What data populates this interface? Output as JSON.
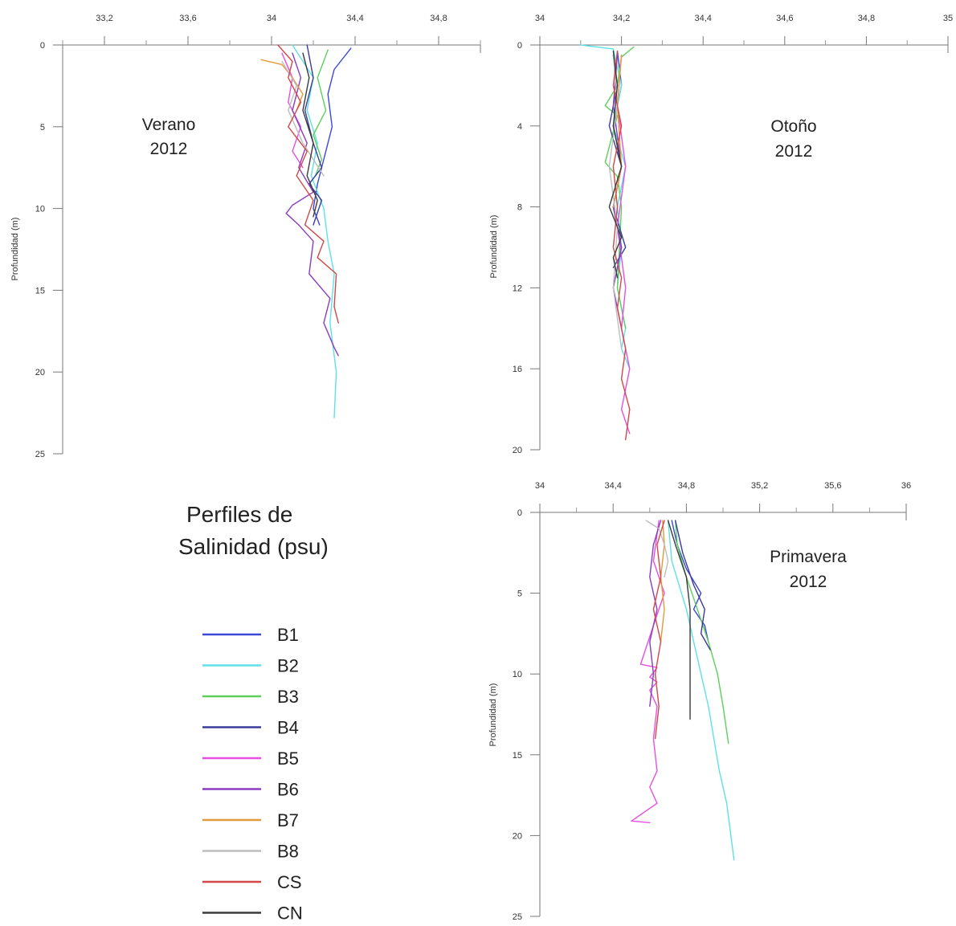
{
  "figure": {
    "title_lines": [
      "Perfiles de",
      "Salinidad (psu)"
    ]
  },
  "legend": [
    {
      "name": "B1",
      "color": "#3a48d8"
    },
    {
      "name": "B2",
      "color": "#5ee0e8"
    },
    {
      "name": "B3",
      "color": "#5ccf5c"
    },
    {
      "name": "B4",
      "color": "#3b3b9a"
    },
    {
      "name": "B5",
      "color": "#e64fe0"
    },
    {
      "name": "B6",
      "color": "#8a3bbf"
    },
    {
      "name": "B7",
      "color": "#e39a3a"
    },
    {
      "name": "B8",
      "color": "#bdbdbd"
    },
    {
      "name": "CS",
      "color": "#d24848"
    },
    {
      "name": "CN",
      "color": "#3b3b3b"
    }
  ],
  "chart_data": [
    {
      "type": "line",
      "label_lines": [
        "Verano",
        "2012"
      ],
      "ylabel": "Profundidad (m)",
      "xlim": [
        33.0,
        35.0
      ],
      "ylim": [
        0,
        25
      ],
      "y_inverted": true,
      "x_ticks": [
        33.2,
        33.6,
        34,
        34.4,
        34.8
      ],
      "x_tick_labels": [
        "33,2",
        "33,6",
        "34",
        "34,4",
        "34,8"
      ],
      "y_ticks": [
        0,
        5,
        10,
        15,
        20,
        25
      ],
      "y_tick_labels": [
        "0",
        "5",
        "10",
        "15",
        "20",
        "25"
      ],
      "series": [
        {
          "name": "B1",
          "x": [
            34.38,
            34.3,
            34.27,
            34.29,
            34.25,
            34.22,
            34.2,
            34.23
          ],
          "y": [
            0.2,
            1.5,
            3,
            5,
            7,
            8.5,
            10,
            11
          ]
        },
        {
          "name": "B2",
          "x": [
            34.1,
            34.2,
            34.17,
            34.22,
            34.19,
            34.25,
            34.27,
            34.3,
            34.28,
            34.31,
            34.3
          ],
          "y": [
            0,
            2,
            4,
            6,
            8,
            10,
            12,
            14,
            17,
            20,
            22.8
          ]
        },
        {
          "name": "B3",
          "x": [
            34.27,
            34.22,
            34.26,
            34.2,
            34.24,
            34.21
          ],
          "y": [
            0.3,
            2,
            4,
            5.5,
            7,
            8
          ]
        },
        {
          "name": "B4",
          "x": [
            34.17,
            34.2,
            34.16,
            34.2,
            34.24,
            34.18,
            34.24,
            34.2
          ],
          "y": [
            0,
            2,
            4,
            6,
            7.5,
            8.5,
            9.5,
            11
          ]
        },
        {
          "name": "B5",
          "x": [
            34.05,
            34.1,
            34.08,
            34.14,
            34.1,
            34.15
          ],
          "y": [
            0.5,
            2,
            3.5,
            5,
            6.5,
            7.5
          ]
        },
        {
          "name": "B6",
          "x": [
            34.1,
            34.14,
            34.1,
            34.17,
            34.13,
            34.2,
            34.1,
            34.07,
            34.13,
            34.2,
            34.18,
            34.28,
            34.25,
            34.3,
            34.32
          ],
          "y": [
            0.5,
            2,
            4,
            6,
            7.5,
            9,
            9.8,
            10.3,
            11,
            12,
            14,
            15.5,
            17,
            18.5,
            19
          ]
        },
        {
          "name": "B7",
          "x": [
            33.95,
            34.05,
            34.1,
            34.15,
            34.12
          ],
          "y": [
            0.9,
            1.2,
            2,
            3,
            4
          ]
        },
        {
          "name": "B8",
          "x": [
            34.05,
            34.12,
            34.08,
            34.15,
            34.2,
            34.25
          ],
          "y": [
            1,
            2.5,
            4,
            6,
            7,
            8
          ]
        },
        {
          "name": "CS",
          "x": [
            34.03,
            34.1,
            34.08,
            34.14,
            34.08,
            34.17,
            34.12,
            34.2,
            34.16,
            34.25,
            34.22,
            34.31,
            34.3,
            34.32
          ],
          "y": [
            0,
            1,
            2,
            3.5,
            5,
            6.5,
            8,
            9.5,
            11,
            12,
            13,
            14,
            16,
            17
          ]
        },
        {
          "name": "CN",
          "x": [
            34.15,
            34.18,
            34.15,
            34.2,
            34.17,
            34.22,
            34.2
          ],
          "y": [
            0.5,
            2,
            4,
            6,
            8,
            9.5,
            10.5
          ]
        }
      ]
    },
    {
      "type": "line",
      "label_lines": [
        "Otoño",
        "2012"
      ],
      "ylabel": "Profundidad (m)",
      "xlim": [
        34.0,
        35.0
      ],
      "ylim": [
        0,
        20
      ],
      "y_inverted": true,
      "x_ticks": [
        34,
        34.2,
        34.4,
        34.6,
        34.8,
        35
      ],
      "x_tick_labels": [
        "34",
        "34,2",
        "34,4",
        "34,6",
        "34,8",
        "35"
      ],
      "y_ticks": [
        0,
        4,
        8,
        12,
        16,
        20
      ],
      "y_tick_labels": [
        "0",
        "4",
        "8",
        "12",
        "16",
        "20"
      ],
      "series": [
        {
          "name": "B1",
          "x": [
            34.19,
            34.2,
            34.18,
            34.2,
            34.18,
            34.2,
            34.19
          ],
          "y": [
            0.3,
            2,
            4,
            6,
            8,
            10,
            11
          ]
        },
        {
          "name": "B2",
          "x": [
            34.1,
            34.18,
            34.2,
            34.18,
            34.21,
            34.19,
            34.2,
            34.19,
            34.21,
            34.2,
            34.22
          ],
          "y": [
            0,
            0.2,
            2,
            4,
            6,
            8,
            10,
            12,
            14,
            15,
            16
          ]
        },
        {
          "name": "B3",
          "x": [
            34.23,
            34.2,
            34.19,
            34.16,
            34.19,
            34.16,
            34.19,
            34.2,
            34.19,
            34.21
          ],
          "y": [
            0.1,
            0.6,
            2,
            3,
            3.5,
            5.8,
            6.5,
            8,
            12,
            14
          ]
        },
        {
          "name": "B4",
          "x": [
            34.18,
            34.19,
            34.17,
            34.2,
            34.18,
            34.21,
            34.18
          ],
          "y": [
            0.5,
            2,
            4,
            6,
            8,
            10,
            11
          ]
        },
        {
          "name": "B5",
          "x": [
            34.2,
            34.19,
            34.21,
            34.19,
            34.21,
            34.2,
            34.22,
            34.2,
            34.22
          ],
          "y": [
            0.5,
            3,
            6,
            9,
            12,
            14,
            16,
            18,
            19.2
          ]
        },
        {
          "name": "B6",
          "x": [
            34.19,
            34.18,
            34.2,
            34.18,
            34.2,
            34.18,
            34.2
          ],
          "y": [
            0.5,
            3,
            6,
            8,
            10,
            12,
            14
          ]
        },
        {
          "name": "B7",
          "x": [
            34.2,
            34.19,
            34.2,
            34.18
          ],
          "y": [
            0.5,
            3,
            6,
            8
          ]
        },
        {
          "name": "B8",
          "x": [
            34.18,
            34.19,
            34.17,
            34.19,
            34.18,
            34.2
          ],
          "y": [
            0.5,
            3,
            6,
            9,
            12,
            15
          ]
        },
        {
          "name": "CS",
          "x": [
            34.19,
            34.18,
            34.2,
            34.18,
            34.19,
            34.18,
            34.2,
            34.19,
            34.21,
            34.2,
            34.22,
            34.21
          ],
          "y": [
            0.3,
            2,
            4,
            6,
            8,
            10,
            11.5,
            13,
            15,
            16.5,
            18,
            19.5
          ]
        },
        {
          "name": "CN",
          "x": [
            34.18,
            34.19,
            34.18,
            34.2,
            34.17,
            34.2,
            34.18,
            34.19
          ],
          "y": [
            0.3,
            2,
            4,
            6,
            8,
            9.5,
            10.5,
            11.5
          ]
        }
      ]
    },
    {
      "type": "line",
      "label_lines": [
        "Primavera",
        "2012"
      ],
      "ylabel": "Profundidad (m)",
      "xlim": [
        34.0,
        36.0
      ],
      "ylim": [
        0,
        25
      ],
      "y_inverted": true,
      "x_ticks": [
        34,
        34.4,
        34.8,
        35.2,
        35.6,
        36
      ],
      "x_tick_labels": [
        "34",
        "34,4",
        "34,8",
        "35,2",
        "35,6",
        "36"
      ],
      "y_ticks": [
        0,
        5,
        10,
        15,
        20,
        25
      ],
      "y_tick_labels": [
        "0",
        "5",
        "10",
        "15",
        "20",
        "25"
      ],
      "series": [
        {
          "name": "B1",
          "x": [
            34.72,
            34.75,
            34.8,
            34.88,
            34.84,
            34.9,
            34.92
          ],
          "y": [
            0.5,
            2,
            3.5,
            5,
            6,
            7,
            8
          ]
        },
        {
          "name": "B2",
          "x": [
            34.7,
            34.72,
            34.8,
            34.84,
            34.88,
            34.92,
            34.95,
            34.98,
            35.02,
            35.06
          ],
          "y": [
            0.5,
            3,
            6,
            8,
            10,
            12,
            14,
            16,
            18,
            21.5
          ]
        },
        {
          "name": "B3",
          "x": [
            34.74,
            34.75,
            34.8,
            34.86,
            34.92,
            34.97,
            35.0,
            35.03
          ],
          "y": [
            0.5,
            2,
            4,
            6,
            8,
            10,
            12,
            14.3
          ]
        },
        {
          "name": "B4",
          "x": [
            34.74,
            34.78,
            34.84,
            34.9,
            34.88,
            34.93
          ],
          "y": [
            0.5,
            2.5,
            4.5,
            6,
            7.5,
            8.5
          ]
        },
        {
          "name": "B5",
          "x": [
            34.65,
            34.62,
            34.68,
            34.62,
            34.55,
            34.64,
            34.6,
            34.64,
            34.6,
            34.64,
            34.62,
            34.64,
            34.6,
            34.64,
            34.5,
            34.6
          ],
          "y": [
            0.5,
            3,
            5,
            7,
            9.4,
            9.6,
            10.2,
            10.5,
            11,
            12,
            14,
            16,
            17,
            18,
            19.1,
            19.2
          ]
        },
        {
          "name": "B6",
          "x": [
            34.66,
            34.62,
            34.6,
            34.64,
            34.6,
            34.62,
            34.6
          ],
          "y": [
            0.5,
            2,
            4,
            6,
            8,
            10,
            12
          ]
        },
        {
          "name": "B7",
          "x": [
            34.67,
            34.68,
            34.66,
            34.68,
            34.66
          ],
          "y": [
            0.5,
            2,
            4,
            6,
            8
          ]
        },
        {
          "name": "B8",
          "x": [
            34.58,
            34.65,
            34.68,
            34.7,
            34.68
          ],
          "y": [
            0.5,
            1,
            2,
            3,
            4
          ]
        },
        {
          "name": "CS",
          "x": [
            34.68,
            34.64,
            34.66,
            34.62,
            34.66,
            34.63,
            34.65,
            34.63
          ],
          "y": [
            0.5,
            2,
            4,
            6,
            8,
            10,
            12,
            14
          ]
        },
        {
          "name": "CN",
          "x": [
            34.7,
            34.74,
            34.8,
            34.82,
            34.82,
            34.82
          ],
          "y": [
            0.5,
            2,
            4,
            6,
            9,
            12.8
          ]
        }
      ]
    }
  ]
}
